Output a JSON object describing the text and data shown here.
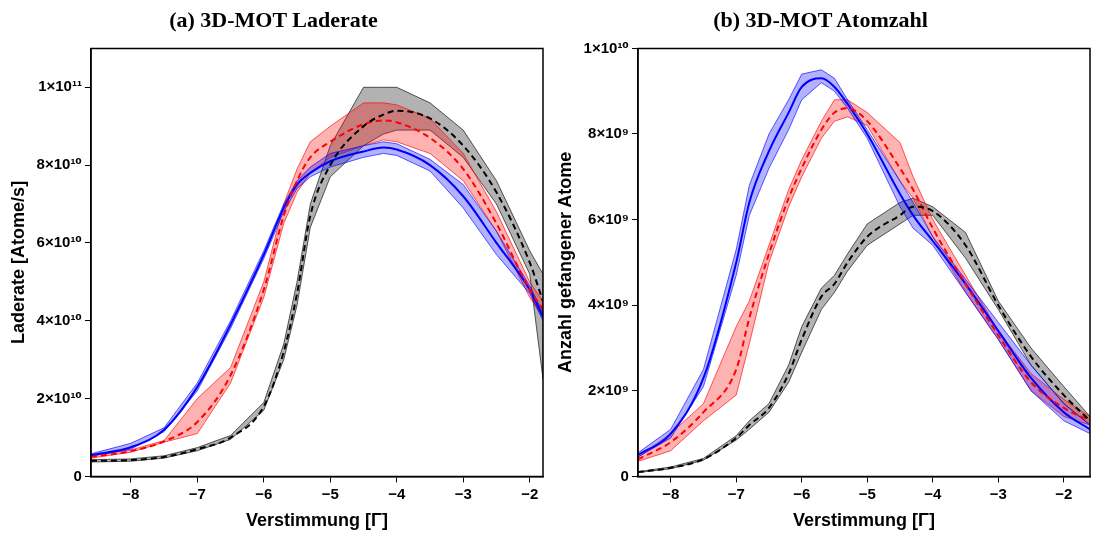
{
  "chart_data": [
    {
      "type": "line",
      "title": "(a) 3D-MOT Laderate",
      "xlabel": "Verstimmung [Γ]",
      "ylabel": "Laderate [Atome/s]",
      "xlim": [
        -8.6,
        -1.8
      ],
      "xticks": [
        {
          "value": -8,
          "label": "−8"
        },
        {
          "value": -7,
          "label": "−7"
        },
        {
          "value": -6,
          "label": "−6"
        },
        {
          "value": -5,
          "label": "−5"
        },
        {
          "value": -4,
          "label": "−4"
        },
        {
          "value": -3,
          "label": "−3"
        },
        {
          "value": -2,
          "label": "−2"
        }
      ],
      "ylim": [
        0,
        110000000000.0
      ],
      "yticks": [
        0,
        {
          "value": 20000000000.0,
          "label": "2×10¹⁰"
        },
        {
          "value": 40000000000.0,
          "label": "4×10¹⁰"
        },
        {
          "value": 60000000000.0,
          "label": "6×10¹⁰"
        },
        {
          "value": 80000000000.0,
          "label": "8×10¹⁰"
        },
        {
          "value": 100000000000.0,
          "label": "1×10¹¹"
        }
      ],
      "grid": false,
      "legend": false,
      "marker": "none",
      "x": [
        -8.6,
        -8,
        -7.5,
        -7,
        -6.5,
        -6,
        -5.7,
        -5.5,
        -5.3,
        -5,
        -4.5,
        -4.2,
        -4,
        -3.5,
        -3,
        -2.5,
        -2,
        -1.8
      ],
      "series": [
        {
          "color": "#000000",
          "line_style": "dashed",
          "values": [
            4000000000.0,
            4200000000.0,
            5000000000.0,
            7000000000.0,
            10000000000.0,
            18000000000.0,
            32000000000.0,
            47000000000.0,
            67000000000.0,
            80000000000.0,
            90000000000.0,
            93000000000.0,
            94000000000.0,
            92000000000.0,
            85000000000.0,
            73000000000.0,
            55000000000.0,
            45000000000.0
          ],
          "lower": [
            3700000000.0,
            3900000000.0,
            4700000000.0,
            6600000000.0,
            9500000000.0,
            17000000000.0,
            30000000000.0,
            44000000000.0,
            64000000000.0,
            77000000000.0,
            85000000000.0,
            88000000000.0,
            89000000000.0,
            89000000000.0,
            82000000000.0,
            70000000000.0,
            52000000000.0,
            25000000000.0
          ],
          "upper": [
            4300000000.0,
            4500000000.0,
            5300000000.0,
            7400000000.0,
            10500000000.0,
            19000000000.0,
            34000000000.0,
            50000000000.0,
            70000000000.0,
            85000000000.0,
            100000000000.0,
            100000000000.0,
            100000000000.0,
            96000000000.0,
            89000000000.0,
            76000000000.0,
            58000000000.0,
            52000000000.0
          ]
        },
        {
          "color": "#ff0000",
          "line_style": "dashed",
          "values": [
            5000000000.0,
            6500000000.0,
            9000000000.0,
            14000000000.0,
            26000000000.0,
            48000000000.0,
            67000000000.0,
            76000000000.0,
            82000000000.0,
            86000000000.0,
            90500000000.0,
            91500000000.0,
            91000000000.0,
            87000000000.0,
            79000000000.0,
            65000000000.0,
            48000000000.0,
            43000000000.0
          ],
          "lower": [
            4700000000.0,
            6200000000.0,
            8800000000.0,
            11000000000.0,
            24000000000.0,
            46000000000.0,
            65000000000.0,
            73000000000.0,
            78000000000.0,
            82000000000.0,
            85000000000.0,
            86500000000.0,
            86000000000.0,
            83000000000.0,
            76000000000.0,
            63000000000.0,
            46000000000.0,
            41000000000.0
          ],
          "upper": [
            5300000000.0,
            6800000000.0,
            9200000000.0,
            20000000000.0,
            28000000000.0,
            50000000000.0,
            70000000000.0,
            79000000000.0,
            86000000000.0,
            90000000000.0,
            96000000000.0,
            96000000000.0,
            95500000000.0,
            92000000000.0,
            83000000000.0,
            68000000000.0,
            50000000000.0,
            45000000000.0
          ]
        },
        {
          "color": "#0000ff",
          "values": [
            5500000000.0,
            7500000000.0,
            12000000000.0,
            23000000000.0,
            39000000000.0,
            57000000000.0,
            69000000000.0,
            75000000000.0,
            78000000000.0,
            81000000000.0,
            83500000000.0,
            84500000000.0,
            84000000000.0,
            80000000000.0,
            72000000000.0,
            60000000000.0,
            48000000000.0,
            41000000000.0
          ],
          "lower": [
            5200000000.0,
            7000000000.0,
            11500000000.0,
            22000000000.0,
            38000000000.0,
            56000000000.0,
            68000000000.0,
            74000000000.0,
            77000000000.0,
            79500000000.0,
            82000000000.0,
            83000000000.0,
            82500000000.0,
            78500000000.0,
            69000000000.0,
            57000000000.0,
            47000000000.0,
            40000000000.0
          ],
          "upper": [
            5800000000.0,
            8500000000.0,
            12500000000.0,
            24000000000.0,
            40000000000.0,
            58000000000.0,
            70000000000.0,
            76000000000.0,
            79500000000.0,
            83000000000.0,
            85000000000.0,
            86000000000.0,
            85500000000.0,
            81500000000.0,
            75000000000.0,
            63000000000.0,
            49000000000.0,
            42000000000.0
          ]
        }
      ]
    },
    {
      "type": "line",
      "title": "(b) 3D-MOT Atomzahl",
      "xlabel": "Verstimmung [Γ]",
      "ylabel": "Anzahl gefangener Atome",
      "xlim": [
        -8.5,
        -1.6
      ],
      "xticks": [
        {
          "value": -8,
          "label": "−8"
        },
        {
          "value": -7,
          "label": "−7"
        },
        {
          "value": -6,
          "label": "−6"
        },
        {
          "value": -5,
          "label": "−5"
        },
        {
          "value": -4,
          "label": "−4"
        },
        {
          "value": -3,
          "label": "−3"
        },
        {
          "value": -2,
          "label": "−2"
        }
      ],
      "ylim": [
        0,
        10000000000.0
      ],
      "yticks": [
        0,
        {
          "value": 2000000000.0,
          "label": "2×10⁹"
        },
        {
          "value": 4000000000.0,
          "label": "4×10⁹"
        },
        {
          "value": 6000000000.0,
          "label": "6×10⁹"
        },
        {
          "value": 8000000000.0,
          "label": "8×10⁹"
        },
        {
          "value": 10000000000.0,
          "label": "1×10¹⁰"
        }
      ],
      "grid": false,
      "legend": false,
      "marker": "none",
      "x": [
        -8.5,
        -8,
        -7.5,
        -7,
        -6.8,
        -6.5,
        -6.2,
        -6,
        -5.7,
        -5.5,
        -5.3,
        -5,
        -4.5,
        -4.3,
        -4,
        -3.5,
        -3,
        -2.5,
        -2,
        -1.6
      ],
      "series": [
        {
          "color": "#000000",
          "line_style": "dashed",
          "values": [
            100000000.0,
            200000000.0,
            400000000.0,
            900000000.0,
            1200000000.0,
            1600000000.0,
            2400000000.0,
            3200000000.0,
            4200000000.0,
            4500000000.0,
            5000000000.0,
            5600000000.0,
            6100000000.0,
            6300000000.0,
            6200000000.0,
            5400000000.0,
            4000000000.0,
            2800000000.0,
            1900000000.0,
            1300000000.0
          ],
          "lower": [
            90000000.0,
            180000000.0,
            380000000.0,
            850000000.0,
            1100000000.0,
            1500000000.0,
            2200000000.0,
            2900000000.0,
            3900000000.0,
            4300000000.0,
            4800000000.0,
            5400000000.0,
            5900000000.0,
            6100000000.0,
            6100000000.0,
            5100000000.0,
            3900000000.0,
            2600000000.0,
            1700000000.0,
            1200000000.0
          ],
          "upper": [
            110000000.0,
            220000000.0,
            420000000.0,
            950000000.0,
            1300000000.0,
            1700000000.0,
            2600000000.0,
            3500000000.0,
            4400000000.0,
            4700000000.0,
            5200000000.0,
            5900000000.0,
            6400000000.0,
            6500000000.0,
            6300000000.0,
            5700000000.0,
            4100000000.0,
            3000000000.0,
            2100000000.0,
            1400000000.0
          ]
        },
        {
          "color": "#ff0000",
          "line_style": "dashed",
          "values": [
            400000000.0,
            800000000.0,
            1500000000.0,
            2500000000.0,
            3700000000.0,
            5200000000.0,
            6500000000.0,
            7200000000.0,
            8100000000.0,
            8500000000.0,
            8600000000.0,
            8300000000.0,
            7200000000.0,
            6700000000.0,
            5800000000.0,
            4500000000.0,
            3300000000.0,
            2200000000.0,
            1600000000.0,
            1300000000.0
          ],
          "lower": [
            350000000.0,
            600000000.0,
            1300000000.0,
            1900000000.0,
            3100000000.0,
            5000000000.0,
            6300000000.0,
            7000000000.0,
            7900000000.0,
            8300000000.0,
            8400000000.0,
            8200000000.0,
            6900000000.0,
            6500000000.0,
            5600000000.0,
            4300000000.0,
            3200000000.0,
            2000000000.0,
            1400000000.0,
            1200000000.0
          ],
          "upper": [
            450000000.0,
            1000000000.0,
            1700000000.0,
            3500000000.0,
            4100000000.0,
            5400000000.0,
            6700000000.0,
            7400000000.0,
            8300000000.0,
            8800000000.0,
            8800000000.0,
            8500000000.0,
            7800000000.0,
            7000000000.0,
            6000000000.0,
            4700000000.0,
            3400000000.0,
            2400000000.0,
            1800000000.0,
            1400000000.0
          ]
        },
        {
          "color": "#0000ff",
          "values": [
            500000000.0,
            1000000000.0,
            2300000000.0,
            5000000000.0,
            6400000000.0,
            7600000000.0,
            8500000000.0,
            9100000000.0,
            9300000000.0,
            9100000000.0,
            8700000000.0,
            8000000000.0,
            6600000000.0,
            6100000000.0,
            5500000000.0,
            4500000000.0,
            3400000000.0,
            2300000000.0,
            1500000000.0,
            1100000000.0
          ],
          "lower": [
            450000000.0,
            900000000.0,
            2100000000.0,
            4700000000.0,
            6100000000.0,
            7200000000.0,
            8100000000.0,
            8800000000.0,
            9200000000.0,
            9000000000.0,
            8600000000.0,
            7900000000.0,
            6300000000.0,
            5800000000.0,
            5400000000.0,
            4300000000.0,
            3200000000.0,
            2000000000.0,
            1300000000.0,
            1000000000.0
          ],
          "upper": [
            550000000.0,
            1100000000.0,
            2500000000.0,
            5300000000.0,
            6800000000.0,
            8000000000.0,
            8800000000.0,
            9400000000.0,
            9500000000.0,
            9300000000.0,
            8800000000.0,
            8100000000.0,
            6900000000.0,
            6400000000.0,
            5600000000.0,
            4600000000.0,
            3600000000.0,
            2600000000.0,
            1700000000.0,
            1200000000.0
          ]
        }
      ]
    }
  ]
}
